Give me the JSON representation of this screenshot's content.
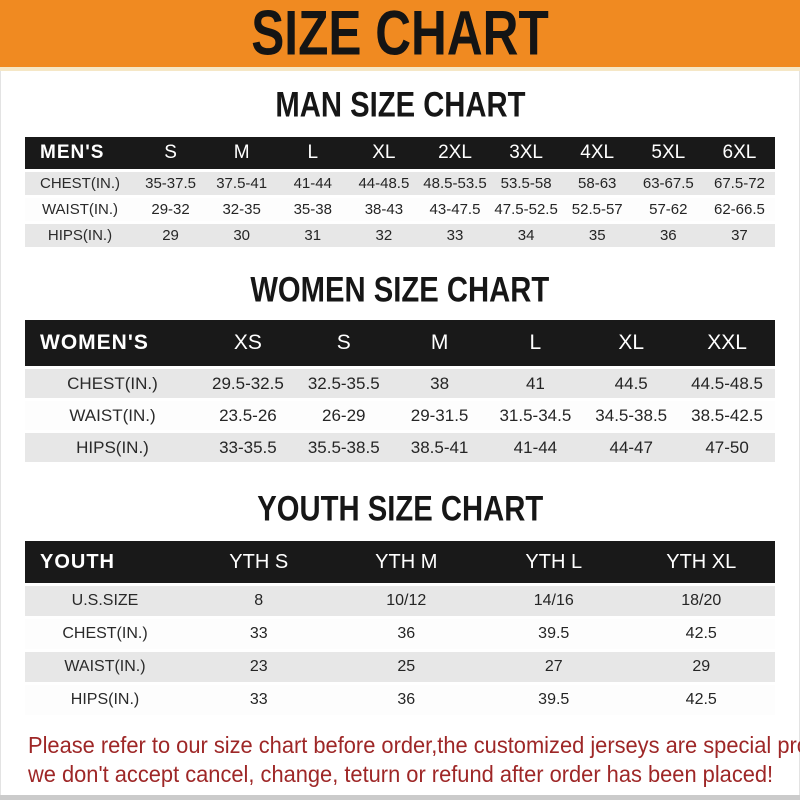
{
  "banner": {
    "title": "SIZE CHART",
    "bg_color": "#F08A21",
    "text_color": "#141414"
  },
  "men": {
    "heading": "MAN SIZE CHART",
    "header_label": "MEN'S",
    "sizes": [
      "S",
      "M",
      "L",
      "XL",
      "2XL",
      "3XL",
      "4XL",
      "5XL",
      "6XL"
    ],
    "rows": [
      {
        "label": "CHEST(IN.)",
        "values": [
          "35-37.5",
          "37.5-41",
          "41-44",
          "44-48.5",
          "48.5-53.5",
          "53.5-58",
          "58-63",
          "63-67.5",
          "67.5-72"
        ]
      },
      {
        "label": "WAIST(IN.)",
        "values": [
          "29-32",
          "32-35",
          "35-38",
          "38-43",
          "43-47.5",
          "47.5-52.5",
          "52.5-57",
          "57-62",
          "62-66.5"
        ]
      },
      {
        "label": "HIPS(IN.)",
        "values": [
          "29",
          "30",
          "31",
          "32",
          "33",
          "34",
          "35",
          "36",
          "37"
        ]
      }
    ]
  },
  "women": {
    "heading": "WOMEN SIZE CHART",
    "header_label": "WOMEN'S",
    "sizes": [
      "XS",
      "S",
      "M",
      "L",
      "XL",
      "XXL"
    ],
    "rows": [
      {
        "label": "CHEST(IN.)",
        "values": [
          "29.5-32.5",
          "32.5-35.5",
          "38",
          "41",
          "44.5",
          "44.5-48.5"
        ]
      },
      {
        "label": "WAIST(IN.)",
        "values": [
          "23.5-26",
          "26-29",
          "29-31.5",
          "31.5-34.5",
          "34.5-38.5",
          "38.5-42.5"
        ]
      },
      {
        "label": "HIPS(IN.)",
        "values": [
          "33-35.5",
          "35.5-38.5",
          "38.5-41",
          "41-44",
          "44-47",
          "47-50"
        ]
      }
    ]
  },
  "youth": {
    "heading": "YOUTH SIZE CHART",
    "header_label": "YOUTH",
    "sizes": [
      "YTH S",
      "YTH M",
      "YTH L",
      "YTH XL"
    ],
    "rows": [
      {
        "label": "U.S.SIZE",
        "values": [
          "8",
          "10/12",
          "14/16",
          "18/20"
        ]
      },
      {
        "label": "CHEST(IN.)",
        "values": [
          "33",
          "36",
          "39.5",
          "42.5"
        ]
      },
      {
        "label": "WAIST(IN.)",
        "values": [
          "23",
          "25",
          "27",
          "29"
        ]
      },
      {
        "label": "HIPS(IN.)",
        "values": [
          "33",
          "36",
          "39.5",
          "42.5"
        ]
      }
    ]
  },
  "footer": {
    "line1": "Please refer to our size chart before order,the customized jerseys are special products,",
    "line2": "we don't accept cancel, change, teturn or refund after order has been placed!",
    "text_color": "#9e2727"
  }
}
